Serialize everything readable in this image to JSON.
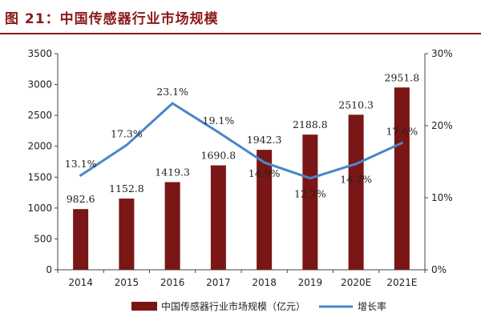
{
  "title": "图 21：中国传感器行业市场规模",
  "colors": {
    "bar": "#7a1616",
    "line": "#4a86c8",
    "title": "#8b1a1a"
  },
  "chart_data": {
    "type": "bar",
    "categories": [
      "2014",
      "2015",
      "2016",
      "2017",
      "2018",
      "2019",
      "2020E",
      "2021E"
    ],
    "series": [
      {
        "name": "中国传感器行业市场规模（亿元）",
        "type": "bar",
        "axis": "left",
        "values": [
          982.6,
          1152.8,
          1419.3,
          1690.8,
          1942.3,
          2188.8,
          2510.3,
          2951.8
        ],
        "labels": [
          "982.6",
          "1152.8",
          "1419.3",
          "1690.8",
          "1942.3",
          "2188.8",
          "2510.3",
          "2951.8"
        ]
      },
      {
        "name": "增长率",
        "type": "line",
        "axis": "right",
        "values": [
          13.1,
          17.3,
          23.1,
          19.1,
          14.9,
          12.7,
          14.7,
          17.6
        ],
        "labels": [
          "13.1%",
          "17.3%",
          "23.1%",
          "19.1%",
          "14.9%",
          "12.7%",
          "14.7%",
          "17.6%"
        ]
      }
    ],
    "y_left": {
      "ylim": [
        0,
        3500
      ],
      "ticks": [
        "0",
        "500",
        "1000",
        "1500",
        "2000",
        "2500",
        "3000",
        "3500"
      ]
    },
    "y_right": {
      "ylim": [
        0,
        30
      ],
      "ticks": [
        "0%",
        "10%",
        "20%",
        "30%"
      ]
    },
    "grid": false,
    "legend_position": "bottom"
  }
}
